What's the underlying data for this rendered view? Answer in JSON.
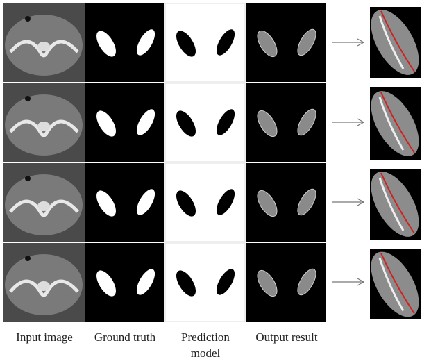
{
  "columns": [
    {
      "label": "Input image"
    },
    {
      "label": "Ground truth"
    },
    {
      "label": "Prediction model"
    },
    {
      "label": "Output result"
    }
  ]
}
